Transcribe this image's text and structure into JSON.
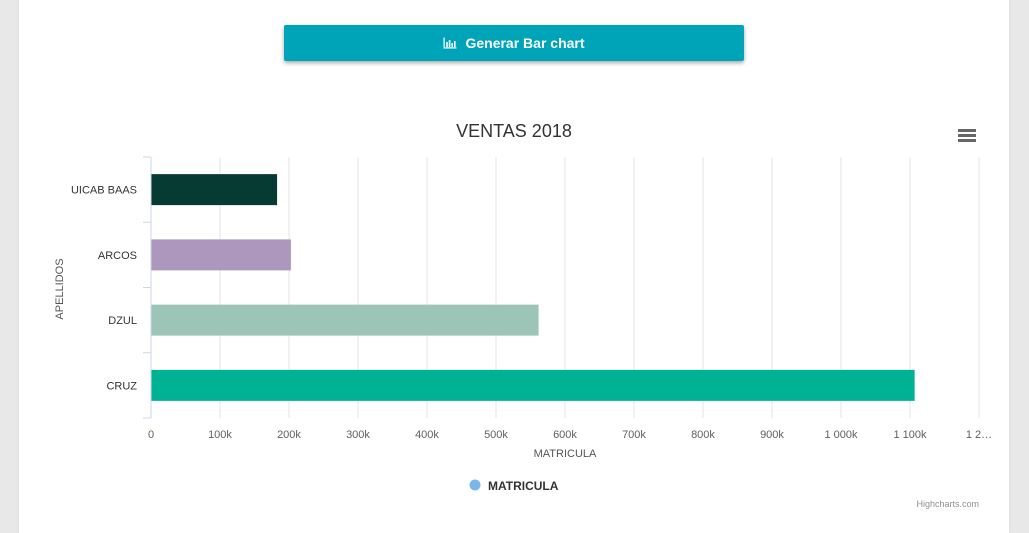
{
  "toolbar": {
    "generate_label": "Generar Bar chart",
    "generate_icon": "bar-chart-icon"
  },
  "chart_menu": {
    "icon": "hamburger-menu-icon"
  },
  "credits": "Highcharts.com",
  "colors": {
    "button": "#00a4b8",
    "legend_marker": "#7cb5ec"
  },
  "chart_data": {
    "type": "bar",
    "orientation": "horizontal",
    "title": "VENTAS 2018",
    "xlabel": "APELLIDOS",
    "ylabel": "MATRICULA",
    "categories": [
      "UICAB BAAS",
      "ARCOS",
      "DZUL",
      "CRUZ"
    ],
    "series": [
      {
        "name": "MATRICULA",
        "values": [
          182000,
          202000,
          561000,
          1106000
        ],
        "point_colors": [
          "#063b33",
          "#ad97bc",
          "#9dc5b7",
          "#00b294"
        ]
      }
    ],
    "ylim": [
      0,
      1200000
    ],
    "value_ticks": [
      "0",
      "100k",
      "200k",
      "300k",
      "400k",
      "500k",
      "600k",
      "700k",
      "800k",
      "900k",
      "1 000k",
      "1 100k",
      "1 2…"
    ],
    "grid": true,
    "legend": "bottom-center"
  }
}
